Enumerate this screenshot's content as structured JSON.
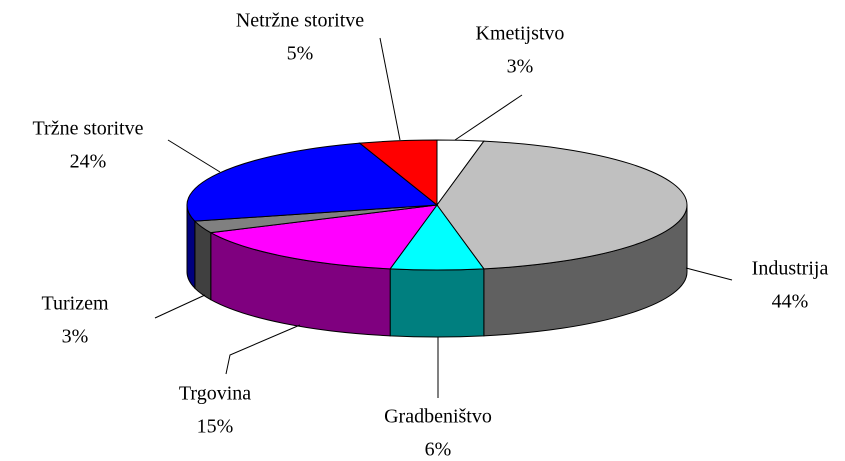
{
  "chart_data": {
    "type": "pie3d",
    "categories": [
      "Kmetijstvo",
      "Industrija",
      "Gradbeništvo",
      "Trgovina",
      "Turizem",
      "Tržne storitve",
      "Netržne storitve"
    ],
    "values": [
      3,
      44,
      6,
      15,
      3,
      24,
      5
    ],
    "value_labels": [
      "3%",
      "44%",
      "6%",
      "15%",
      "3%",
      "24%",
      "5%"
    ],
    "colors": [
      "#ffffff",
      "#c0c0c0",
      "#00ffff",
      "#ff00ff",
      "#808080",
      "#0000ff",
      "#ff0000"
    ]
  }
}
